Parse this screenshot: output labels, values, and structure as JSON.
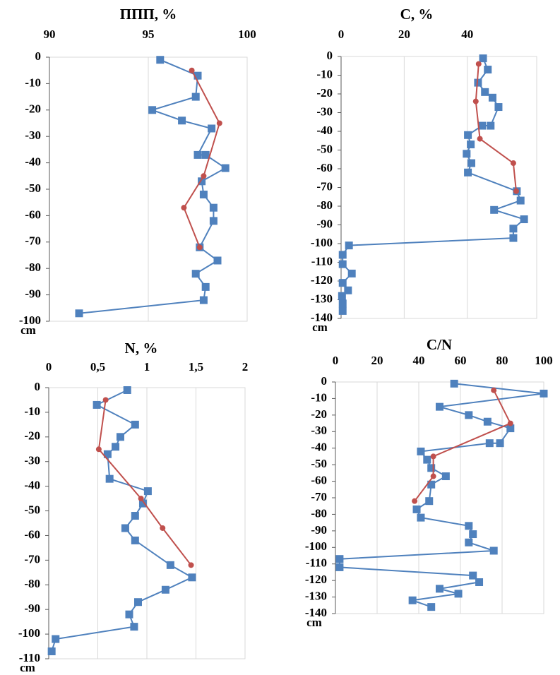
{
  "chart_data": [
    {
      "type": "line",
      "title": "ППП, %",
      "y_label": "cm",
      "xlim": [
        90,
        100
      ],
      "xticks": [
        90,
        95,
        100
      ],
      "ylim": [
        -100,
        0
      ],
      "yticks": [
        0,
        -10,
        -20,
        -30,
        -40,
        -50,
        -60,
        -70,
        -80,
        -90,
        -100
      ],
      "grid": true,
      "series": [
        {
          "color": "#4f81bd",
          "marker": "square",
          "x": [
            95.6,
            97.5,
            97.4,
            95.2,
            96.7,
            98.2,
            97.5,
            97.9,
            98.9,
            97.7,
            97.8,
            98.3,
            98.3,
            97.6,
            98.5,
            97.4,
            97.9,
            97.8,
            91.5
          ],
          "y": [
            -1,
            -7,
            -15,
            -20,
            -24,
            -27,
            -37,
            -37,
            -42,
            -47,
            -52,
            -57,
            -62,
            -72,
            -77,
            -82,
            -87,
            -92,
            -97
          ]
        },
        {
          "color": "#c0504d",
          "marker": "circle",
          "x": [
            97.2,
            98.6,
            97.8,
            96.8,
            97.6
          ],
          "y": [
            -5,
            -25,
            -45,
            -57,
            -72
          ]
        }
      ]
    },
    {
      "type": "line",
      "title": "C, %",
      "y_label": "cm",
      "xlim": [
        0,
        62
      ],
      "xticks": [
        0,
        20,
        40
      ],
      "ylim": [
        -140,
        0
      ],
      "yticks": [
        0,
        -10,
        -20,
        -30,
        -40,
        -50,
        -60,
        -70,
        -80,
        -90,
        -100,
        -110,
        -120,
        -130,
        -140
      ],
      "grid": true,
      "series": [
        {
          "color": "#4f81bd",
          "marker": "square",
          "x": [
            45,
            46.5,
            43.4,
            45.6,
            48,
            49.9,
            47.4,
            44.7,
            40.2,
            41.1,
            39.8,
            41.3,
            40.2,
            55.7,
            56.9,
            48.5,
            58,
            54.6,
            54.6,
            2.5,
            0.5,
            0.5,
            3.4,
            0.5,
            2.2,
            0.3,
            0.5,
            0.5
          ],
          "y": [
            -1,
            -7,
            -14,
            -19,
            -22,
            -27,
            -37,
            -37,
            -42,
            -47,
            -52,
            -57,
            -62,
            -72,
            -77,
            -82,
            -87,
            -92,
            -97,
            -101,
            -106,
            -111,
            -116,
            -121,
            -125,
            -128,
            -132,
            -136
          ]
        },
        {
          "color": "#c0504d",
          "marker": "circle",
          "x": [
            43.6,
            42.7,
            44,
            54.6,
            55.5
          ],
          "y": [
            -4,
            -24,
            -44,
            -57,
            -72
          ]
        }
      ]
    },
    {
      "type": "line",
      "title": "N, %",
      "y_label": "cm",
      "xlim": [
        0,
        2
      ],
      "xticks": [
        0,
        {
          "value": 0.5,
          "label": "0,5"
        },
        1,
        {
          "value": 1.5,
          "label": "1,5"
        },
        2
      ],
      "ylim": [
        -110,
        0
      ],
      "yticks": [
        0,
        -10,
        -20,
        -30,
        -40,
        -50,
        -60,
        -70,
        -80,
        -90,
        -100,
        -110
      ],
      "grid": true,
      "series": [
        {
          "color": "#4f81bd",
          "marker": "square",
          "x": [
            0.8,
            0.49,
            0.88,
            0.73,
            0.68,
            0.6,
            0.62,
            1.01,
            0.96,
            0.88,
            0.78,
            0.88,
            1.24,
            1.46,
            1.19,
            0.91,
            0.82,
            0.87,
            0.07,
            0.03
          ],
          "y": [
            -1,
            -7,
            -15,
            -20,
            -24,
            -27,
            -37,
            -42,
            -47,
            -52,
            -57,
            -62,
            -72,
            -77,
            -82,
            -87,
            -92,
            -97,
            -102,
            -107
          ]
        },
        {
          "color": "#c0504d",
          "marker": "circle",
          "x": [
            0.58,
            0.51,
            0.94,
            1.16,
            1.45
          ],
          "y": [
            -5,
            -25,
            -45,
            -57,
            -72
          ]
        }
      ]
    },
    {
      "type": "line",
      "title": "C/N",
      "y_label": "cm",
      "xlim": [
        0,
        100
      ],
      "xticks": [
        0,
        20,
        40,
        60,
        80,
        100
      ],
      "ylim": [
        -140,
        0
      ],
      "yticks": [
        0,
        -10,
        -20,
        -30,
        -40,
        -50,
        -60,
        -70,
        -80,
        -90,
        -100,
        -110,
        -120,
        -130,
        -140
      ],
      "grid": true,
      "series": [
        {
          "color": "#4f81bd",
          "marker": "square",
          "x": [
            57,
            100,
            50,
            64,
            73,
            84,
            79,
            74,
            41,
            44,
            46,
            53,
            46,
            45,
            39,
            41,
            64,
            66,
            64,
            76,
            2,
            2,
            66,
            69,
            50,
            59,
            37,
            46
          ],
          "y": [
            -1,
            -7,
            -15,
            -20,
            -24,
            -28,
            -37,
            -37,
            -42,
            -47,
            -52,
            -57,
            -62,
            -72,
            -77,
            -82,
            -87,
            -92,
            -97,
            -102,
            -107,
            -112,
            -117,
            -121,
            -125,
            -128,
            -132,
            -136
          ]
        },
        {
          "color": "#c0504d",
          "marker": "circle",
          "x": [
            76,
            84,
            47,
            47,
            38
          ],
          "y": [
            -5,
            -25,
            -45,
            -57,
            -72
          ]
        }
      ]
    }
  ]
}
